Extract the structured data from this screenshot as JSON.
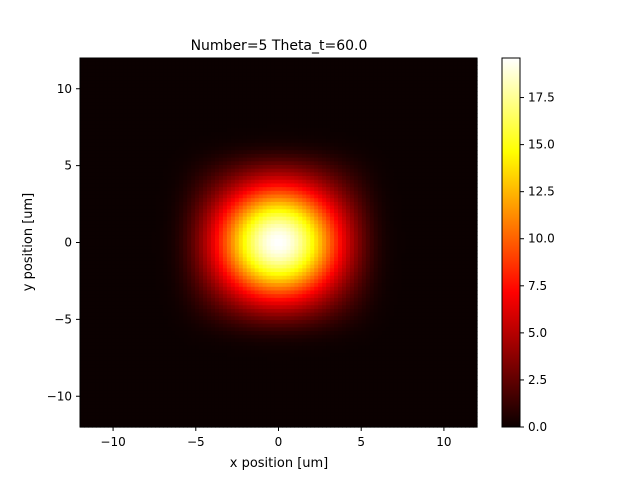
{
  "chart_data": {
    "type": "heatmap",
    "title": "Number=5 Theta_t=60.0",
    "xlabel": "x position [um]",
    "ylabel": "y position [um]",
    "xlim": [
      -12,
      12
    ],
    "ylim": [
      -12,
      12
    ],
    "xticks": [
      -10,
      -5,
      0,
      5,
      10
    ],
    "yticks": [
      -10,
      -5,
      0,
      5,
      10
    ],
    "xtick_labels": [
      "−10",
      "−5",
      "0",
      "5",
      "10"
    ],
    "ytick_labels": [
      "−10",
      "−5",
      "0",
      "5",
      "10"
    ],
    "colormap": "hot",
    "colorbar": {
      "range": [
        0.0,
        19.6
      ],
      "ticks": [
        0.0,
        2.5,
        5.0,
        7.5,
        10.0,
        12.5,
        15.0,
        17.5
      ],
      "tick_labels": [
        "0.0",
        "2.5",
        "5.0",
        "7.5",
        "10.0",
        "12.5",
        "15.0",
        "17.5"
      ]
    },
    "field": {
      "description_values": "intensity map: central gaussian spot clipped to a square aperture",
      "peak_value": 19.6,
      "center": [
        0,
        0
      ],
      "gaussian_sigma_um": 2.7,
      "aperture_half_width_um": 6.0,
      "aperture_edge_um": 0.6
    },
    "grid": false
  }
}
